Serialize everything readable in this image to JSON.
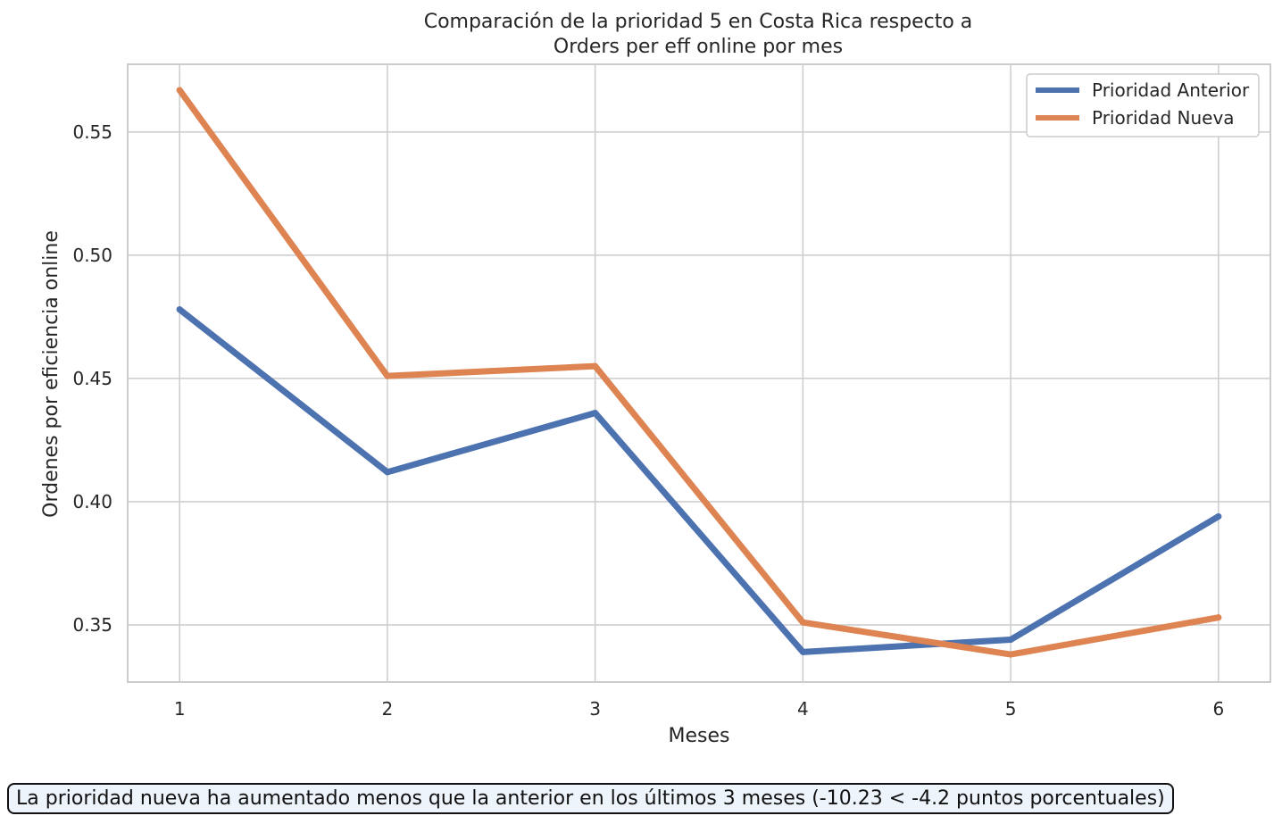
{
  "chart_data": {
    "type": "line",
    "title_line1": "Comparación de la prioridad 5 en Costa Rica respecto a",
    "title_line2": "Orders per eff online por mes",
    "xlabel": "Meses",
    "ylabel": "Ordenes por eficiencia online",
    "x": [
      1,
      2,
      3,
      4,
      5,
      6
    ],
    "xlim": [
      0.75,
      6.25
    ],
    "ylim": [
      0.3268,
      0.5775
    ],
    "yticks": [
      0.35,
      0.4,
      0.45,
      0.5,
      0.55
    ],
    "ytick_labels": [
      "0.35",
      "0.40",
      "0.45",
      "0.50",
      "0.55"
    ],
    "xtick_labels": [
      "1",
      "2",
      "3",
      "4",
      "5",
      "6"
    ],
    "grid": true,
    "legend_position": "top-right",
    "series": [
      {
        "name": "Prioridad Anterior",
        "color": "#4c72b0",
        "values": [
          0.478,
          0.412,
          0.436,
          0.339,
          0.344,
          0.394
        ]
      },
      {
        "name": "Prioridad Nueva",
        "color": "#dd8452",
        "values": [
          0.567,
          0.451,
          0.455,
          0.351,
          0.338,
          0.353
        ]
      }
    ],
    "annotation": "La prioridad nueva ha aumentado menos que la anterior en los últimos 3 meses (-10.23 < -4.2 puntos porcentuales)"
  }
}
